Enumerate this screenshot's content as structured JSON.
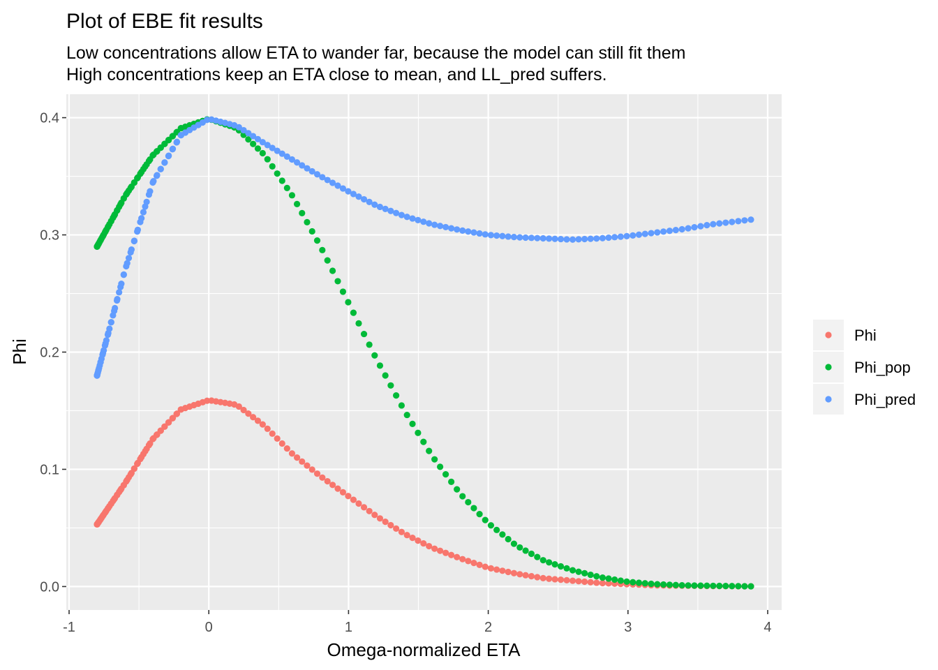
{
  "chart_data": {
    "type": "scatter",
    "title": "Plot of EBE fit results",
    "subtitle_lines": [
      "Low concentrations allow ETA to wander far, because the model can still fit them",
      "High concentrations keep an ETA close to mean, and LL_pred suffers."
    ],
    "xlabel": "Omega-normalized ETA",
    "ylabel": "Phi",
    "xlim": [
      -1.02,
      4.1
    ],
    "ylim": [
      -0.02,
      0.42
    ],
    "x_ticks": [
      -1,
      0,
      1,
      2,
      3,
      4
    ],
    "x_tick_labels": [
      "-1",
      "0",
      "1",
      "2",
      "3",
      "4"
    ],
    "y_ticks": [
      0.0,
      0.1,
      0.2,
      0.3,
      0.4
    ],
    "y_tick_labels": [
      "0.0",
      "0.1",
      "0.2",
      "0.3",
      "0.4"
    ],
    "grid": true,
    "legend_position": "right",
    "x_range": [
      -0.8,
      3.88
    ],
    "series": [
      {
        "name": "Phi",
        "color": "#F8766D",
        "points": [
          [
            -0.8,
            0.053
          ],
          [
            -0.6,
            0.088
          ],
          [
            -0.4,
            0.126
          ],
          [
            -0.2,
            0.151
          ],
          [
            0.0,
            0.159
          ],
          [
            0.2,
            0.155
          ],
          [
            0.4,
            0.137
          ],
          [
            0.6,
            0.113
          ],
          [
            0.8,
            0.094
          ],
          [
            1.0,
            0.077
          ],
          [
            1.2,
            0.06
          ],
          [
            1.4,
            0.045
          ],
          [
            1.6,
            0.033
          ],
          [
            1.8,
            0.024
          ],
          [
            2.0,
            0.016
          ],
          [
            2.2,
            0.011
          ],
          [
            2.4,
            0.007
          ],
          [
            2.6,
            0.005
          ],
          [
            2.8,
            0.003
          ],
          [
            3.0,
            0.002
          ],
          [
            3.2,
            0.001
          ],
          [
            3.4,
            0.0007
          ],
          [
            3.6,
            0.0004
          ],
          [
            3.88,
            0.0002
          ]
        ]
      },
      {
        "name": "Phi_pop",
        "color": "#00BA38",
        "points": [
          [
            -0.8,
            0.29
          ],
          [
            -0.6,
            0.333
          ],
          [
            -0.4,
            0.368
          ],
          [
            -0.2,
            0.391
          ],
          [
            0.0,
            0.399
          ],
          [
            0.2,
            0.391
          ],
          [
            0.4,
            0.368
          ],
          [
            0.6,
            0.333
          ],
          [
            0.8,
            0.29
          ],
          [
            1.0,
            0.242
          ],
          [
            1.2,
            0.194
          ],
          [
            1.4,
            0.15
          ],
          [
            1.6,
            0.111
          ],
          [
            1.8,
            0.079
          ],
          [
            2.0,
            0.054
          ],
          [
            2.2,
            0.035
          ],
          [
            2.4,
            0.022
          ],
          [
            2.6,
            0.014
          ],
          [
            2.8,
            0.008
          ],
          [
            3.0,
            0.004
          ],
          [
            3.2,
            0.002
          ],
          [
            3.4,
            0.001
          ],
          [
            3.6,
            0.0006
          ],
          [
            3.88,
            0.0002
          ]
        ]
      },
      {
        "name": "Phi_pred",
        "color": "#619CFF",
        "points": [
          [
            -0.8,
            0.18
          ],
          [
            -0.6,
            0.27
          ],
          [
            -0.4,
            0.345
          ],
          [
            -0.2,
            0.385
          ],
          [
            0.0,
            0.399
          ],
          [
            0.2,
            0.393
          ],
          [
            0.4,
            0.378
          ],
          [
            0.6,
            0.364
          ],
          [
            0.8,
            0.35
          ],
          [
            1.0,
            0.337
          ],
          [
            1.2,
            0.325
          ],
          [
            1.4,
            0.316
          ],
          [
            1.6,
            0.309
          ],
          [
            1.8,
            0.304
          ],
          [
            2.0,
            0.3
          ],
          [
            2.2,
            0.298
          ],
          [
            2.4,
            0.297
          ],
          [
            2.6,
            0.296
          ],
          [
            2.8,
            0.297
          ],
          [
            3.0,
            0.299
          ],
          [
            3.2,
            0.302
          ],
          [
            3.4,
            0.305
          ],
          [
            3.6,
            0.309
          ],
          [
            3.88,
            0.313
          ]
        ]
      }
    ]
  }
}
